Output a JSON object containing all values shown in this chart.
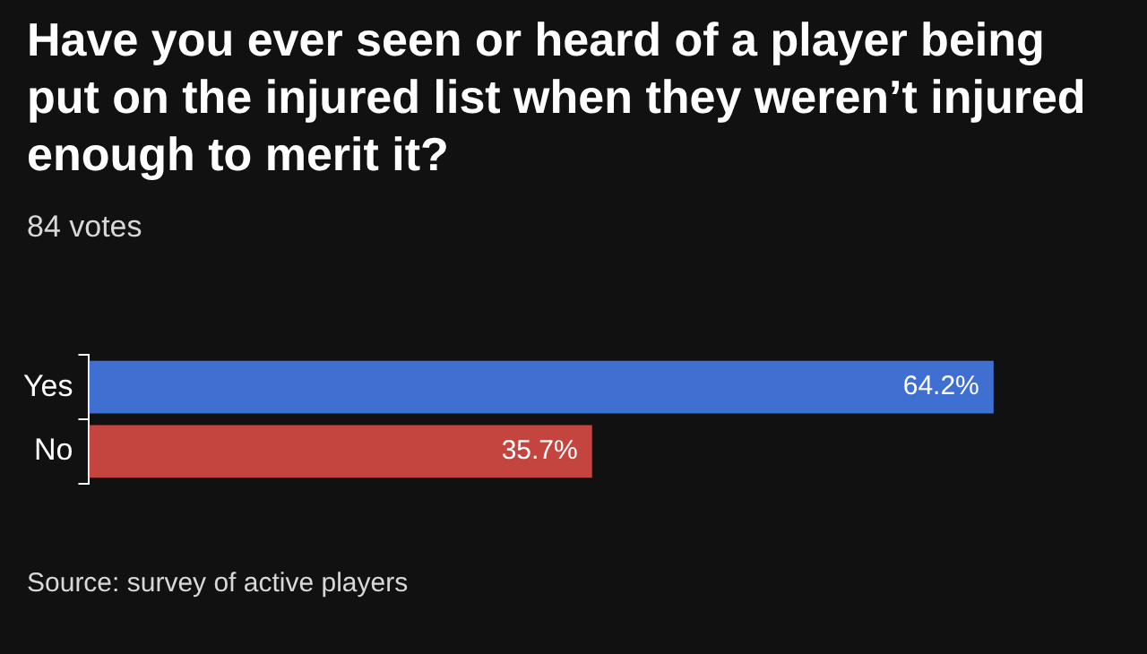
{
  "chart_data": {
    "type": "bar",
    "orientation": "horizontal",
    "title": "Have you ever seen or heard of a player being put on the injured list when they weren’t injured enough to merit it?",
    "subtitle": "84 votes",
    "categories": [
      "Yes",
      "No"
    ],
    "values": [
      64.2,
      35.7
    ],
    "colors": [
      "#3f6fd0",
      "#c4443f"
    ],
    "value_labels": [
      "64.2%",
      "35.7%"
    ],
    "legend": false,
    "annotations": [
      "Source: survey of active players"
    ]
  }
}
